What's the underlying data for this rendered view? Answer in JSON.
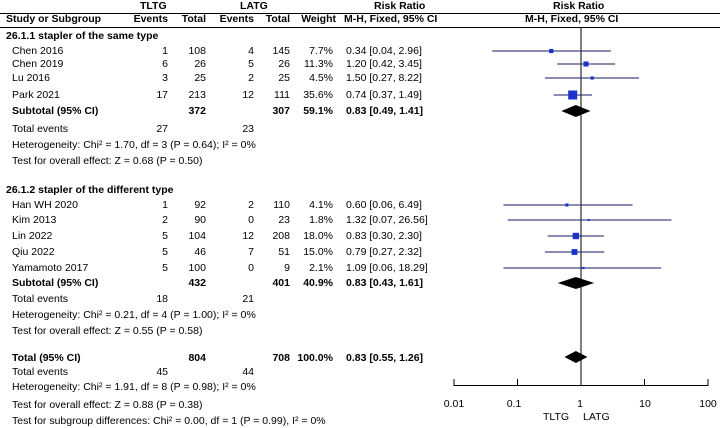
{
  "header": {
    "group1": "TLTG",
    "group2": "LATG",
    "rr_top_left": "Risk Ratio",
    "rr_top_right": "Risk Ratio",
    "study_col": "Study or Subgroup",
    "events1": "Events",
    "total1": "Total",
    "events2": "Events",
    "total2": "Total",
    "weight": "Weight",
    "method_left": "M-H, Fixed, 95% CI",
    "method_right": "M-H, Fixed, 95% CI"
  },
  "footer": {
    "total_label": "Total (95% CI)",
    "total_n1": "804",
    "total_n2": "708",
    "total_weight": "100.0%",
    "total_ci": "0.83 [0.55, 1.26]",
    "total_events_label": "Total events",
    "total_events1": "45",
    "total_events2": "44",
    "heterogeneity": "Heterogeneity: Chi² = 1.91, df = 8 (P = 0.98); I² = 0%",
    "overall_effect": "Test for overall effect: Z = 0.88 (P = 0.38)",
    "subgroup_diff": "Test for subgroup differences: Chi² = 0.00, df = 1 (P = 0.99), I² = 0%"
  },
  "axis": {
    "ticks": [
      "0.01",
      "0.1",
      "1",
      "10",
      "100"
    ],
    "favours_left": "TLTG",
    "favours_right": "LATG"
  },
  "chart_data": {
    "type": "forest",
    "scale": "log",
    "xlim": [
      0.01,
      100
    ],
    "null_line": 1,
    "subgroups": [
      {
        "title": "26.1.1 stapler of the same type",
        "studies": [
          {
            "name": "Chen 2016",
            "e1": "1",
            "n1": "108",
            "e2": "4",
            "n2": "145",
            "weight": "7.7%",
            "ci_text": "0.34 [0.04, 2.96]",
            "rr": 0.34,
            "lo": 0.04,
            "hi": 2.96
          },
          {
            "name": "Chen 2019",
            "e1": "6",
            "n1": "26",
            "e2": "5",
            "n2": "26",
            "weight": "11.3%",
            "ci_text": "1.20 [0.42, 3.45]",
            "rr": 1.2,
            "lo": 0.42,
            "hi": 3.45
          },
          {
            "name": "Lu 2016",
            "e1": "3",
            "n1": "25",
            "e2": "2",
            "n2": "25",
            "weight": "4.5%",
            "ci_text": "1.50 [0.27, 8.22]",
            "rr": 1.5,
            "lo": 0.27,
            "hi": 8.22
          },
          {
            "name": "Park 2021",
            "e1": "17",
            "n1": "213",
            "e2": "12",
            "n2": "111",
            "weight": "35.6%",
            "ci_text": "0.74 [0.37, 1.49]",
            "rr": 0.74,
            "lo": 0.37,
            "hi": 1.49
          }
        ],
        "subtotal": {
          "label": "Subtotal (95% CI)",
          "n1": "372",
          "n2": "307",
          "weight": "59.1%",
          "ci_text": "0.83 [0.49, 1.41]",
          "rr": 0.83,
          "lo": 0.49,
          "hi": 1.41
        },
        "total_events_label": "Total events",
        "events1": "27",
        "events2": "23",
        "heterogeneity": "Heterogeneity: Chi² = 1.70, df = 3 (P = 0.64); I² = 0%",
        "overall_effect": "Test for overall effect: Z = 0.68 (P = 0.50)"
      },
      {
        "title": "26.1.2 stapler of the different type",
        "studies": [
          {
            "name": "Han WH 2020",
            "e1": "1",
            "n1": "92",
            "e2": "2",
            "n2": "110",
            "weight": "4.1%",
            "ci_text": "0.60 [0.06, 6.49]",
            "rr": 0.6,
            "lo": 0.06,
            "hi": 6.49
          },
          {
            "name": "Kim 2013",
            "e1": "2",
            "n1": "90",
            "e2": "0",
            "n2": "23",
            "weight": "1.8%",
            "ci_text": "1.32 [0.07, 26.56]",
            "rr": 1.32,
            "lo": 0.07,
            "hi": 26.56
          },
          {
            "name": "Lin 2022",
            "e1": "5",
            "n1": "104",
            "e2": "12",
            "n2": "208",
            "weight": "18.0%",
            "ci_text": "0.83 [0.30, 2.30]",
            "rr": 0.83,
            "lo": 0.3,
            "hi": 2.3
          },
          {
            "name": "Qiu 2022",
            "e1": "5",
            "n1": "46",
            "e2": "7",
            "n2": "51",
            "weight": "15.0%",
            "ci_text": "0.79 [0.27, 2.32]",
            "rr": 0.79,
            "lo": 0.27,
            "hi": 2.32
          },
          {
            "name": "Yamamoto 2017",
            "e1": "5",
            "n1": "100",
            "e2": "0",
            "n2": "9",
            "weight": "2.1%",
            "ci_text": "1.09 [0.06, 18.29]",
            "rr": 1.09,
            "lo": 0.06,
            "hi": 18.29
          }
        ],
        "subtotal": {
          "label": "Subtotal (95% CI)",
          "n1": "432",
          "n2": "401",
          "weight": "40.9%",
          "ci_text": "0.83 [0.43, 1.61]",
          "rr": 0.83,
          "lo": 0.43,
          "hi": 1.61
        },
        "total_events_label": "Total events",
        "events1": "18",
        "events2": "21",
        "heterogeneity": "Heterogeneity: Chi² = 0.21, df = 4 (P = 1.00); I² = 0%",
        "overall_effect": "Test for overall effect: Z = 0.55 (P = 0.58)"
      }
    ],
    "overall": {
      "rr": 0.83,
      "lo": 0.55,
      "hi": 1.26
    },
    "colors": {
      "marker": "#1a33cc",
      "ci_line": "#1a1a66",
      "diamond": "#000000",
      "rule": "#000000"
    }
  }
}
